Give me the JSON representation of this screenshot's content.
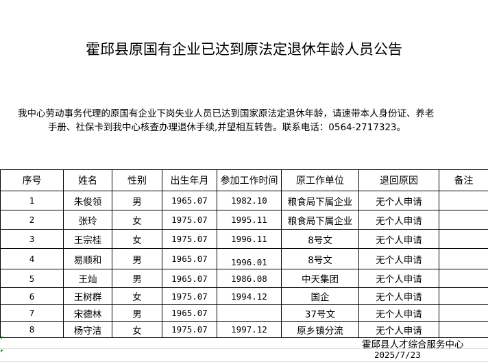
{
  "title": "霍邱县原国有企业已达到原法定退休年龄人员公告",
  "notice": {
    "line1": "我中心劳动事务代理的原国有企业下岗失业人员已达到国家原法定退休年龄，请速带本人身份证、养老",
    "line2": "手册、社保卡到我中心核查办理退休手续,并望相互转告。联系电话：0564-2717323。"
  },
  "table": {
    "headers": [
      "序号",
      "姓名",
      "性别",
      "出生年月",
      "参加工作时间",
      "原工作单位",
      "退回原因",
      "备注"
    ],
    "rows": [
      [
        "1",
        "朱俊领",
        "男",
        "1965.07",
        "1982.10",
        "粮食局下属企业",
        "无个人申请",
        ""
      ],
      [
        "2",
        "张玲",
        "女",
        "1975.07",
        "1995.11",
        "粮食局下属企业",
        "无个人申请",
        ""
      ],
      [
        "3",
        "王宗桂",
        "女",
        "1975.07",
        "1996.11",
        "8号文",
        "无个人申请",
        ""
      ],
      [
        "4",
        "易顺和",
        "男",
        "1965.07",
        "1996.01",
        "8号文",
        "无个人申请",
        ""
      ],
      [
        "5",
        "王灿",
        "男",
        "1965.07",
        "1986.08",
        "中天集团",
        "无个人申请",
        ""
      ],
      [
        "6",
        "王树群",
        "女",
        "1975.07",
        "1994.12",
        "国企",
        "无个人申请",
        ""
      ],
      [
        "7",
        "宋德林",
        "男",
        "1965.07",
        "",
        "37号文",
        "无个人申请",
        ""
      ],
      [
        "8",
        "杨守洁",
        "女",
        "1975.07",
        "1997.12",
        "原乡镇分流",
        "无个人申请",
        ""
      ]
    ]
  },
  "footer": {
    "org": "霍邱县人才综合服务中心",
    "date": "2025/7/23"
  }
}
